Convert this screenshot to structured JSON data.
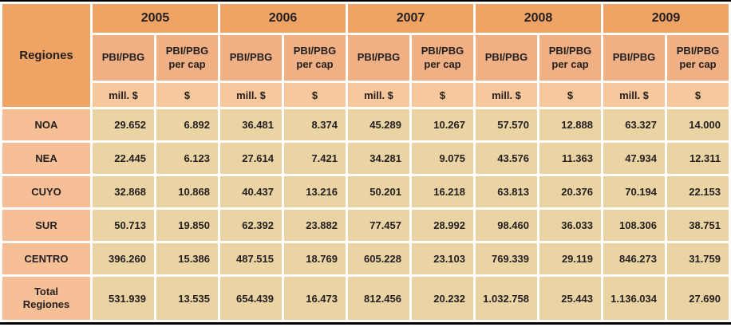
{
  "chart_data": {
    "type": "table",
    "corner_label": "Regiones",
    "year_groups": [
      "2005",
      "2006",
      "2007",
      "2008",
      "2009"
    ],
    "measure_labels": {
      "pbi": "PBI/PBG",
      "per_cap": "PBI/PBG per cap"
    },
    "unit_labels": {
      "mill": "mill. $",
      "dollar": "$"
    },
    "rows": [
      {
        "label": "NOA",
        "values": [
          "29.652",
          "6.892",
          "36.481",
          "8.374",
          "45.289",
          "10.267",
          "57.570",
          "12.888",
          "63.327",
          "14.000"
        ]
      },
      {
        "label": "NEA",
        "values": [
          "22.445",
          "6.123",
          "27.614",
          "7.421",
          "34.281",
          "9.075",
          "43.576",
          "11.363",
          "47.934",
          "12.311"
        ]
      },
      {
        "label": "CUYO",
        "values": [
          "32.868",
          "10.868",
          "40.437",
          "13.216",
          "50.201",
          "16.218",
          "63.813",
          "20.376",
          "70.194",
          "22.153"
        ]
      },
      {
        "label": "SUR",
        "values": [
          "50.713",
          "19.850",
          "62.392",
          "23.882",
          "77.457",
          "28.992",
          "98.460",
          "36.033",
          "108.306",
          "38.751"
        ]
      },
      {
        "label": "CENTRO",
        "values": [
          "396.260",
          "15.386",
          "487.515",
          "18.769",
          "605.228",
          "23.103",
          "769.339",
          "29.119",
          "846.273",
          "31.759"
        ]
      },
      {
        "label": "Total Regiones",
        "values": [
          "531.939",
          "13.535",
          "654.439",
          "16.473",
          "812.456",
          "20.232",
          "1.032.758",
          "25.443",
          "1.136.034",
          "27.690"
        ]
      }
    ],
    "layout": {
      "grid": "white 3px gaps between cells",
      "legend": "none",
      "title": ""
    }
  },
  "colors": {
    "header_bg": "#efa465",
    "subheader_bg": "#f1b084",
    "unit_row_bg": "#f6c89b",
    "data_cell_bg": "#ebd4a4",
    "row_label_bg": "#f6bf95",
    "gridline": "#ffffff",
    "outer_border": "#000000",
    "text": "#231f20"
  }
}
